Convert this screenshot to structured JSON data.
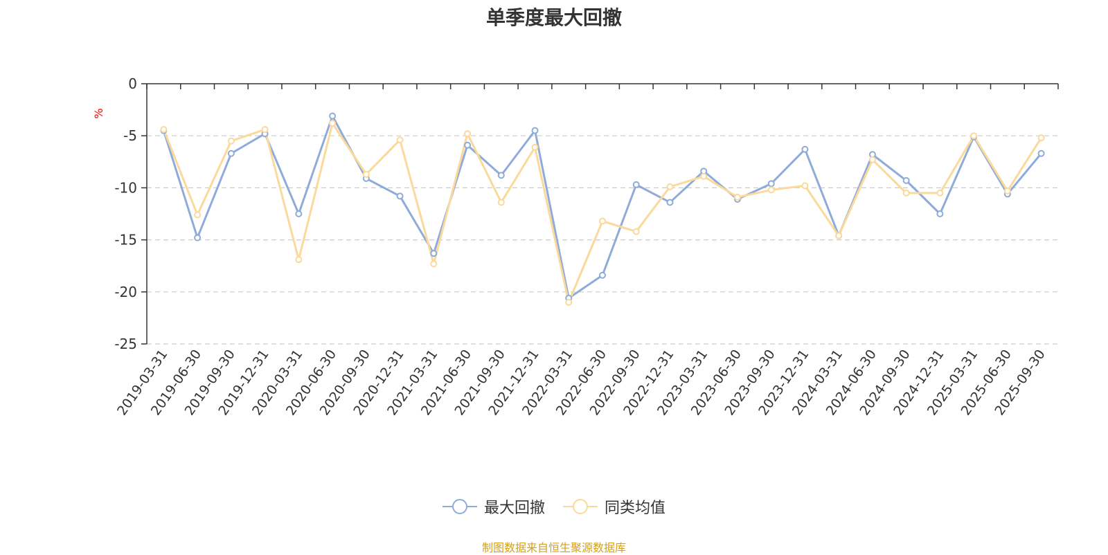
{
  "source_text": "制图数据来自恒生聚源数据库",
  "colors": {
    "series1": "#8eabd9",
    "series2": "#fad99b",
    "grid": "#cccccc",
    "axis": "#333333",
    "unit": "#ff0000",
    "source": "#d4a017"
  },
  "chart_data": {
    "type": "line",
    "title": "单季度最大回撤",
    "ylabel": "%",
    "ylim": [
      -25,
      0
    ],
    "yticks": [
      0,
      -5,
      -10,
      -15,
      -20,
      -25
    ],
    "grid": "horizontal-dashed",
    "legend_position": "bottom",
    "categories": [
      "2019-03-31",
      "2019-06-30",
      "2019-09-30",
      "2019-12-31",
      "2020-03-31",
      "2020-06-30",
      "2020-09-30",
      "2020-12-31",
      "2021-03-31",
      "2021-06-30",
      "2021-09-30",
      "2021-12-31",
      "2022-03-31",
      "2022-06-30",
      "2022-09-30",
      "2022-12-31",
      "2023-03-31",
      "2023-06-30",
      "2023-09-30",
      "2023-12-31",
      "2024-03-31",
      "2024-06-30",
      "2024-09-30",
      "2024-12-31",
      "2025-03-31",
      "2025-06-30",
      "2025-09-30"
    ],
    "series": [
      {
        "name": "最大回撤",
        "values": [
          -4.5,
          -14.8,
          -6.7,
          -4.8,
          -12.5,
          -3.1,
          -9.1,
          -10.8,
          -16.3,
          -5.9,
          -8.8,
          -4.5,
          -20.6,
          -18.4,
          -9.7,
          -11.4,
          -8.4,
          -11.1,
          -9.6,
          -6.3,
          -14.6,
          -6.8,
          -9.3,
          -12.5,
          -5.1,
          -10.6,
          -6.7
        ]
      },
      {
        "name": "同类均值",
        "values": [
          -4.4,
          -12.6,
          -5.5,
          -4.4,
          -16.9,
          -3.8,
          -8.7,
          -5.4,
          -17.3,
          -4.8,
          -11.4,
          -6.1,
          -21.0,
          -13.2,
          -14.2,
          -9.9,
          -8.9,
          -10.9,
          -10.2,
          -9.8,
          -14.6,
          -7.3,
          -10.5,
          -10.5,
          -5.0,
          -10.3,
          -5.2
        ]
      }
    ]
  }
}
